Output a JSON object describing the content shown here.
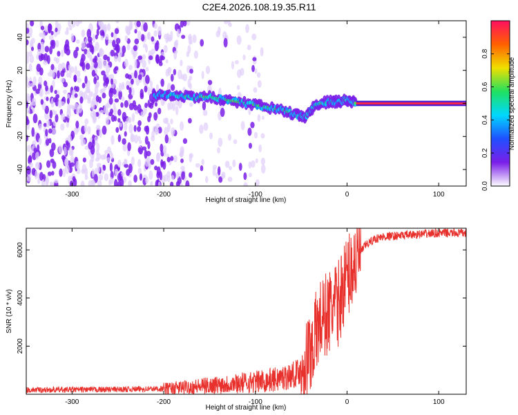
{
  "figure_title": "C2E4.2026.108.19.35.R11",
  "colors": {
    "snr_line": "#e8312c",
    "frame": "#000000",
    "spectrogram_faint": "#e0cffa",
    "spectrogram_dense": "#7a1ee8"
  },
  "chart_data": [
    {
      "type": "heatmap",
      "title": "",
      "xlabel": "Height of straight line (km)",
      "ylabel": "Frequency (Hz)",
      "xlim": [
        -350,
        130
      ],
      "ylim": [
        -50,
        50
      ],
      "xticks": [
        -300,
        -200,
        -100,
        0,
        100
      ],
      "yticks": [
        -40,
        -20,
        0,
        20,
        40
      ],
      "xtick_labels": [
        "-300",
        "-200",
        "-100",
        "0",
        "100"
      ],
      "ytick_labels": [
        "-40",
        "-20",
        "0",
        "20",
        "40"
      ],
      "colorbar": {
        "label": "Normalized spectral amplitude",
        "range": [
          0,
          1
        ],
        "ticks": [
          0.0,
          0.2,
          0.4,
          0.6,
          0.8
        ],
        "tick_labels": [
          "0.0",
          "0.2",
          "0.4",
          "0.6",
          "0.8"
        ],
        "colormap": [
          "#ffffff",
          "#7a1ee8",
          "#2050ff",
          "#00d8ff",
          "#20e060",
          "#f0e000",
          "#ff6000",
          "#ff1060"
        ]
      },
      "doppler_track": {
        "x": [
          -210,
          -190,
          -170,
          -150,
          -130,
          -110,
          -90,
          -70,
          -55,
          -45,
          -35,
          -20,
          -10,
          0,
          10
        ],
        "y": [
          5,
          5,
          4,
          4,
          2,
          0,
          -2,
          -4,
          -7,
          -8,
          -1,
          1,
          1,
          2,
          0
        ]
      },
      "tone": {
        "x": [
          10,
          130
        ],
        "y": [
          0,
          0
        ],
        "amplitude": 1.0
      }
    },
    {
      "type": "line",
      "title": "",
      "xlabel": "Height of straight line (km)",
      "ylabel": "SNR (10 * v/v)",
      "xlim": [
        -350,
        130
      ],
      "ylim": [
        0,
        6900
      ],
      "xticks": [
        -300,
        -200,
        -100,
        0,
        100
      ],
      "yticks": [
        2000,
        4000,
        6000
      ],
      "xtick_labels": [
        "-300",
        "-200",
        "-100",
        "0",
        "100"
      ],
      "ytick_labels": [
        "2000",
        "4000",
        "6000"
      ],
      "series": [
        {
          "name": "SNR",
          "x": [
            -350,
            -300,
            -250,
            -200,
            -180,
            -160,
            -140,
            -120,
            -100,
            -80,
            -60,
            -50,
            -45,
            -40,
            -35,
            -30,
            -25,
            -20,
            -15,
            -10,
            -5,
            0,
            10,
            20,
            30,
            40,
            60,
            80,
            100,
            130
          ],
          "y": [
            180,
            190,
            200,
            230,
            280,
            330,
            400,
            460,
            520,
            600,
            780,
            1000,
            1350,
            1800,
            2400,
            3000,
            3200,
            3400,
            3600,
            3700,
            4400,
            4900,
            5600,
            6200,
            6450,
            6550,
            6600,
            6650,
            6700,
            6700
          ]
        }
      ]
    }
  ]
}
